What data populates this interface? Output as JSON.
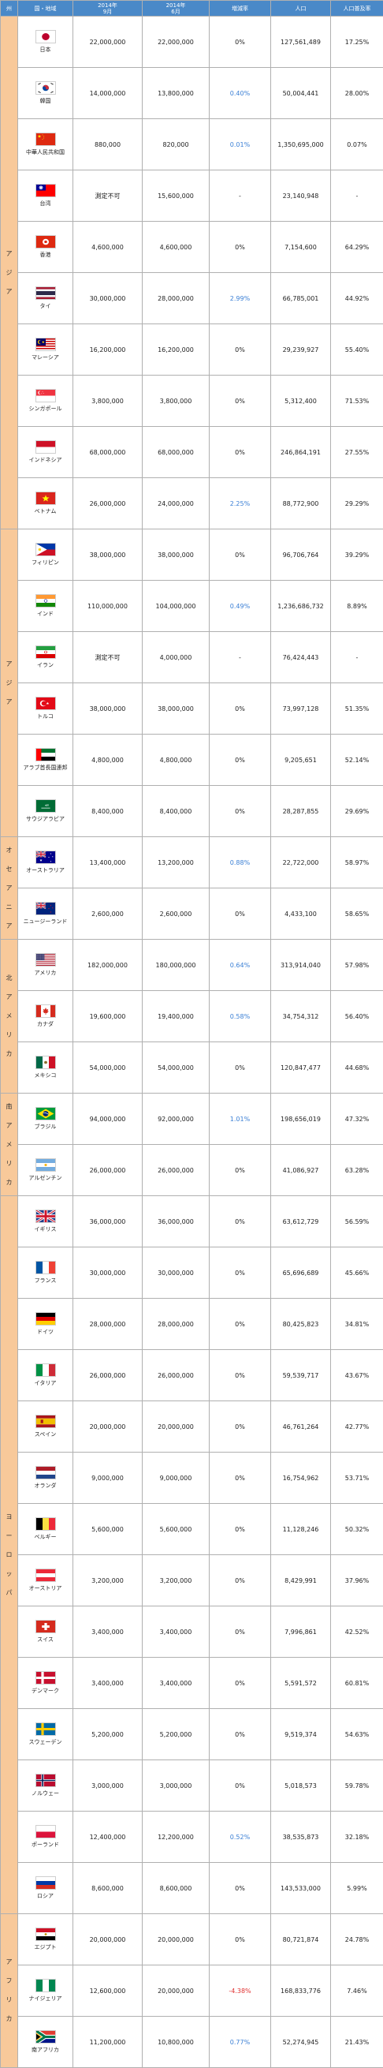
{
  "header": {
    "region": "州",
    "country": "国・地域",
    "y2014": "2014年\n9月",
    "y2014b": "2014年\n6月",
    "rate": "増減率",
    "population": "人口",
    "penetration": "人口普及率"
  },
  "regions": [
    {
      "label": "アジア",
      "rows": 10
    },
    {
      "label": "アジア",
      "rows": 6
    },
    {
      "label": "オセアニア",
      "rows": 2
    },
    {
      "label": "北アメリカ",
      "rows": 3
    },
    {
      "label": "南アメリカ",
      "rows": 2
    },
    {
      "label": "ヨーロッパ",
      "rows": 14
    },
    {
      "label": "アフリカ",
      "rows": 3
    }
  ],
  "rows": [
    {
      "name": "日本",
      "flag": "japan",
      "a": "22,000,000",
      "b": "22,000,000",
      "rate": "0%",
      "rateType": "flat",
      "pop": "127,561,489",
      "pen": "17.25%"
    },
    {
      "name": "韓国",
      "flag": "korea",
      "a": "14,000,000",
      "b": "13,800,000",
      "rate": "0.40%",
      "rateType": "up",
      "pop": "50,004,441",
      "pen": "28.00%"
    },
    {
      "name": "中華人民共和国",
      "flag": "china",
      "a": "880,000",
      "b": "820,000",
      "rate": "0.01%",
      "rateType": "up",
      "pop": "1,350,695,000",
      "pen": "0.07%"
    },
    {
      "name": "台湾",
      "flag": "taiwan",
      "a": "測定不可",
      "b": "15,600,000",
      "rate": "-",
      "rateType": "flat",
      "pop": "23,140,948",
      "pen": "-"
    },
    {
      "name": "香港",
      "flag": "hongkong",
      "a": "4,600,000",
      "b": "4,600,000",
      "rate": "0%",
      "rateType": "flat",
      "pop": "7,154,600",
      "pen": "64.29%"
    },
    {
      "name": "タイ",
      "flag": "thailand",
      "a": "30,000,000",
      "b": "28,000,000",
      "rate": "2.99%",
      "rateType": "up",
      "pop": "66,785,001",
      "pen": "44.92%"
    },
    {
      "name": "マレーシア",
      "flag": "malaysia",
      "a": "16,200,000",
      "b": "16,200,000",
      "rate": "0%",
      "rateType": "flat",
      "pop": "29,239,927",
      "pen": "55.40%"
    },
    {
      "name": "シンガポール",
      "flag": "singapore",
      "a": "3,800,000",
      "b": "3,800,000",
      "rate": "0%",
      "rateType": "flat",
      "pop": "5,312,400",
      "pen": "71.53%"
    },
    {
      "name": "インドネシア",
      "flag": "indonesia",
      "a": "68,000,000",
      "b": "68,000,000",
      "rate": "0%",
      "rateType": "flat",
      "pop": "246,864,191",
      "pen": "27.55%"
    },
    {
      "name": "ベトナム",
      "flag": "vietnam",
      "a": "26,000,000",
      "b": "24,000,000",
      "rate": "2.25%",
      "rateType": "up",
      "pop": "88,772,900",
      "pen": "29.29%"
    },
    {
      "name": "フィリピン",
      "flag": "philippines",
      "a": "38,000,000",
      "b": "38,000,000",
      "rate": "0%",
      "rateType": "flat",
      "pop": "96,706,764",
      "pen": "39.29%"
    },
    {
      "name": "インド",
      "flag": "india",
      "a": "110,000,000",
      "b": "104,000,000",
      "rate": "0.49%",
      "rateType": "up",
      "pop": "1,236,686,732",
      "pen": "8.89%"
    },
    {
      "name": "イラン",
      "flag": "iran",
      "a": "測定不可",
      "b": "4,000,000",
      "rate": "-",
      "rateType": "flat",
      "pop": "76,424,443",
      "pen": "-"
    },
    {
      "name": "トルコ",
      "flag": "turkey",
      "a": "38,000,000",
      "b": "38,000,000",
      "rate": "0%",
      "rateType": "flat",
      "pop": "73,997,128",
      "pen": "51.35%"
    },
    {
      "name": "アラブ首長国連邦",
      "flag": "uae",
      "a": "4,800,000",
      "b": "4,800,000",
      "rate": "0%",
      "rateType": "flat",
      "pop": "9,205,651",
      "pen": "52.14%"
    },
    {
      "name": "サウジアラビア",
      "flag": "saudi",
      "a": "8,400,000",
      "b": "8,400,000",
      "rate": "0%",
      "rateType": "flat",
      "pop": "28,287,855",
      "pen": "29.69%"
    },
    {
      "name": "オーストラリア",
      "flag": "australia",
      "a": "13,400,000",
      "b": "13,200,000",
      "rate": "0.88%",
      "rateType": "up",
      "pop": "22,722,000",
      "pen": "58.97%"
    },
    {
      "name": "ニュージーランド",
      "flag": "newzealand",
      "a": "2,600,000",
      "b": "2,600,000",
      "rate": "0%",
      "rateType": "flat",
      "pop": "4,433,100",
      "pen": "58.65%"
    },
    {
      "name": "アメリカ",
      "flag": "usa",
      "a": "182,000,000",
      "b": "180,000,000",
      "rate": "0.64%",
      "rateType": "up",
      "pop": "313,914,040",
      "pen": "57.98%"
    },
    {
      "name": "カナダ",
      "flag": "canada",
      "a": "19,600,000",
      "b": "19,400,000",
      "rate": "0.58%",
      "rateType": "up",
      "pop": "34,754,312",
      "pen": "56.40%"
    },
    {
      "name": "メキシコ",
      "flag": "mexico",
      "a": "54,000,000",
      "b": "54,000,000",
      "rate": "0%",
      "rateType": "flat",
      "pop": "120,847,477",
      "pen": "44.68%"
    },
    {
      "name": "ブラジル",
      "flag": "brazil",
      "a": "94,000,000",
      "b": "92,000,000",
      "rate": "1.01%",
      "rateType": "up",
      "pop": "198,656,019",
      "pen": "47.32%"
    },
    {
      "name": "アルゼンチン",
      "flag": "argentina",
      "a": "26,000,000",
      "b": "26,000,000",
      "rate": "0%",
      "rateType": "flat",
      "pop": "41,086,927",
      "pen": "63.28%"
    },
    {
      "name": "イギリス",
      "flag": "uk",
      "a": "36,000,000",
      "b": "36,000,000",
      "rate": "0%",
      "rateType": "flat",
      "pop": "63,612,729",
      "pen": "56.59%"
    },
    {
      "name": "フランス",
      "flag": "france",
      "a": "30,000,000",
      "b": "30,000,000",
      "rate": "0%",
      "rateType": "flat",
      "pop": "65,696,689",
      "pen": "45.66%"
    },
    {
      "name": "ドイツ",
      "flag": "germany",
      "a": "28,000,000",
      "b": "28,000,000",
      "rate": "0%",
      "rateType": "flat",
      "pop": "80,425,823",
      "pen": "34.81%"
    },
    {
      "name": "イタリア",
      "flag": "italy",
      "a": "26,000,000",
      "b": "26,000,000",
      "rate": "0%",
      "rateType": "flat",
      "pop": "59,539,717",
      "pen": "43.67%"
    },
    {
      "name": "スペイン",
      "flag": "spain",
      "a": "20,000,000",
      "b": "20,000,000",
      "rate": "0%",
      "rateType": "flat",
      "pop": "46,761,264",
      "pen": "42.77%"
    },
    {
      "name": "オランダ",
      "flag": "netherlands",
      "a": "9,000,000",
      "b": "9,000,000",
      "rate": "0%",
      "rateType": "flat",
      "pop": "16,754,962",
      "pen": "53.71%"
    },
    {
      "name": "ベルギー",
      "flag": "belgium",
      "a": "5,600,000",
      "b": "5,600,000",
      "rate": "0%",
      "rateType": "flat",
      "pop": "11,128,246",
      "pen": "50.32%"
    },
    {
      "name": "オーストリア",
      "flag": "austria",
      "a": "3,200,000",
      "b": "3,200,000",
      "rate": "0%",
      "rateType": "flat",
      "pop": "8,429,991",
      "pen": "37.96%"
    },
    {
      "name": "スイス",
      "flag": "switzerland",
      "a": "3,400,000",
      "b": "3,400,000",
      "rate": "0%",
      "rateType": "flat",
      "pop": "7,996,861",
      "pen": "42.52%"
    },
    {
      "name": "デンマーク",
      "flag": "denmark",
      "a": "3,400,000",
      "b": "3,400,000",
      "rate": "0%",
      "rateType": "flat",
      "pop": "5,591,572",
      "pen": "60.81%"
    },
    {
      "name": "スウェーデン",
      "flag": "sweden",
      "a": "5,200,000",
      "b": "5,200,000",
      "rate": "0%",
      "rateType": "flat",
      "pop": "9,519,374",
      "pen": "54.63%"
    },
    {
      "name": "ノルウェー",
      "flag": "norway",
      "a": "3,000,000",
      "b": "3,000,000",
      "rate": "0%",
      "rateType": "flat",
      "pop": "5,018,573",
      "pen": "59.78%"
    },
    {
      "name": "ポーランド",
      "flag": "poland",
      "a": "12,400,000",
      "b": "12,200,000",
      "rate": "0.52%",
      "rateType": "up",
      "pop": "38,535,873",
      "pen": "32.18%"
    },
    {
      "name": "ロシア",
      "flag": "russia",
      "a": "8,600,000",
      "b": "8,600,000",
      "rate": "0%",
      "rateType": "flat",
      "pop": "143,533,000",
      "pen": "5.99%"
    },
    {
      "name": "エジプト",
      "flag": "egypt",
      "a": "20,000,000",
      "b": "20,000,000",
      "rate": "0%",
      "rateType": "flat",
      "pop": "80,721,874",
      "pen": "24.78%"
    },
    {
      "name": "ナイジェリア",
      "flag": "nigeria",
      "a": "12,600,000",
      "b": "20,000,000",
      "rate": "-4.38%",
      "rateType": "down",
      "pop": "168,833,776",
      "pen": "7.46%"
    },
    {
      "name": "南アフリカ",
      "flag": "southafrica",
      "a": "11,200,000",
      "b": "10,800,000",
      "rate": "0.77%",
      "rateType": "up",
      "pop": "52,274,945",
      "pen": "21.43%"
    }
  ]
}
